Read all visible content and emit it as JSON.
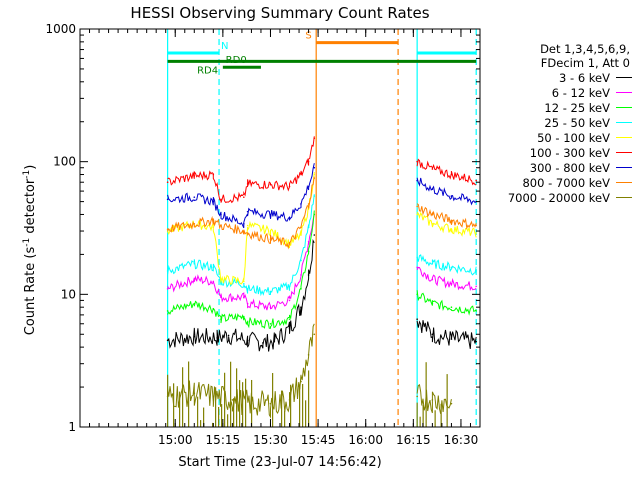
{
  "chart_data": {
    "type": "line",
    "title": "HESSI Observing Summary Count Rates",
    "xlabel": "Start Time (23-Jul-07 14:56:42)",
    "ylabel_main": "Count Rate (s",
    "ylabel_sup1": "-1",
    "ylabel_mid": " detector",
    "ylabel_sup2": "-1",
    "ylabel_end": ")",
    "yscale": "log",
    "ylim": [
      1,
      1000
    ],
    "xlim_minutes": [
      14.5,
      16.6
    ],
    "xticks": [
      {
        "m": 15.0,
        "label": "15:00"
      },
      {
        "m": 15.25,
        "label": "15:15"
      },
      {
        "m": 15.5,
        "label": "15:30"
      },
      {
        "m": 15.75,
        "label": "15:45"
      },
      {
        "m": 16.0,
        "label": "16:00"
      },
      {
        "m": 16.25,
        "label": "16:15"
      },
      {
        "m": 16.5,
        "label": "16:30"
      }
    ],
    "yticks": [
      {
        "v": 1,
        "label": "1"
      },
      {
        "v": 10,
        "label": "10"
      },
      {
        "v": 100,
        "label": "100"
      },
      {
        "v": 1000,
        "label": "1000"
      }
    ],
    "grid": false,
    "legend_position": "right",
    "legend_header": [
      "Det 1,3,4,5,6,9,",
      "FDecim 1, Att 0"
    ],
    "data_gaps": [
      [
        15.74,
        16.27
      ]
    ],
    "series": [
      {
        "name": "3 - 6 keV",
        "color": "#000000",
        "values": [
          [
            14.96,
            4.5
          ],
          [
            15.1,
            4.8
          ],
          [
            15.22,
            4.7
          ],
          [
            15.28,
            4.9
          ],
          [
            15.38,
            4.5
          ],
          [
            15.46,
            4.3
          ],
          [
            15.52,
            4.4
          ],
          [
            15.6,
            5.5
          ],
          [
            15.66,
            8
          ],
          [
            15.7,
            14
          ],
          [
            15.73,
            28
          ],
          [
            16.27,
            6.5
          ],
          [
            16.35,
            5.0
          ],
          [
            16.45,
            4.6
          ],
          [
            16.58,
            4.4
          ]
        ]
      },
      {
        "name": "6 - 12 keV",
        "color": "#ff00ff",
        "values": [
          [
            14.96,
            11
          ],
          [
            15.1,
            13
          ],
          [
            15.2,
            12.5
          ],
          [
            15.24,
            9.5
          ],
          [
            15.36,
            9.5
          ],
          [
            15.38,
            8.5
          ],
          [
            15.5,
            8.0
          ],
          [
            15.6,
            9.0
          ],
          [
            15.66,
            14
          ],
          [
            15.7,
            25
          ],
          [
            15.73,
            40
          ],
          [
            16.27,
            16
          ],
          [
            16.35,
            13
          ],
          [
            16.45,
            12
          ],
          [
            16.58,
            11.5
          ]
        ]
      },
      {
        "name": "12 - 25 keV",
        "color": "#00ff00",
        "values": [
          [
            14.96,
            7.5
          ],
          [
            15.1,
            8.5
          ],
          [
            15.2,
            7.8
          ],
          [
            15.24,
            6.5
          ],
          [
            15.36,
            6.8
          ],
          [
            15.38,
            6.2
          ],
          [
            15.5,
            6.0
          ],
          [
            15.6,
            6.5
          ],
          [
            15.66,
            11
          ],
          [
            15.7,
            21
          ],
          [
            15.73,
            40
          ],
          [
            16.27,
            10
          ],
          [
            16.35,
            8.5
          ],
          [
            16.45,
            8.0
          ],
          [
            16.58,
            7.5
          ]
        ]
      },
      {
        "name": "25 - 50 keV",
        "color": "#00ffff",
        "values": [
          [
            14.96,
            15
          ],
          [
            15.1,
            17
          ],
          [
            15.2,
            16
          ],
          [
            15.24,
            12.5
          ],
          [
            15.36,
            12
          ],
          [
            15.38,
            11
          ],
          [
            15.5,
            10.5
          ],
          [
            15.6,
            11.5
          ],
          [
            15.66,
            18
          ],
          [
            15.7,
            32
          ],
          [
            15.73,
            55
          ],
          [
            16.27,
            19
          ],
          [
            16.35,
            17
          ],
          [
            16.45,
            16
          ],
          [
            16.58,
            15
          ]
        ]
      },
      {
        "name": "50 - 100 keV",
        "color": "#ffff00",
        "values": [
          [
            14.96,
            30
          ],
          [
            15.1,
            34
          ],
          [
            15.2,
            32
          ],
          [
            15.24,
            13
          ],
          [
            15.36,
            12.5
          ],
          [
            15.38,
            33
          ],
          [
            15.5,
            30
          ],
          [
            15.6,
            24
          ],
          [
            15.66,
            28
          ],
          [
            15.7,
            45
          ],
          [
            15.73,
            80
          ],
          [
            16.27,
            40
          ],
          [
            16.35,
            34
          ],
          [
            16.45,
            31
          ],
          [
            16.58,
            29
          ]
        ]
      },
      {
        "name": "100 - 300 keV",
        "color": "#ff0000",
        "values": [
          [
            14.96,
            70
          ],
          [
            15.1,
            78
          ],
          [
            15.2,
            80
          ],
          [
            15.24,
            52
          ],
          [
            15.36,
            54
          ],
          [
            15.38,
            68
          ],
          [
            15.5,
            67
          ],
          [
            15.6,
            65
          ],
          [
            15.66,
            80
          ],
          [
            15.7,
            100
          ],
          [
            15.73,
            150
          ],
          [
            16.27,
            100
          ],
          [
            16.35,
            88
          ],
          [
            16.45,
            80
          ],
          [
            16.58,
            72
          ]
        ]
      },
      {
        "name": "300 - 800 keV",
        "color": "#0000cc",
        "values": [
          [
            14.96,
            52
          ],
          [
            15.1,
            54
          ],
          [
            15.2,
            50
          ],
          [
            15.24,
            40
          ],
          [
            15.36,
            34
          ],
          [
            15.38,
            42
          ],
          [
            15.5,
            40
          ],
          [
            15.6,
            38
          ],
          [
            15.66,
            48
          ],
          [
            15.7,
            65
          ],
          [
            15.73,
            90
          ],
          [
            16.27,
            72
          ],
          [
            16.35,
            62
          ],
          [
            16.45,
            55
          ],
          [
            16.58,
            50
          ]
        ]
      },
      {
        "name": "800 - 7000 keV",
        "color": "#ff8000",
        "values": [
          [
            14.96,
            31
          ],
          [
            15.1,
            34
          ],
          [
            15.2,
            36
          ],
          [
            15.24,
            33
          ],
          [
            15.36,
            30
          ],
          [
            15.38,
            29
          ],
          [
            15.5,
            26
          ],
          [
            15.6,
            24
          ],
          [
            15.66,
            32
          ],
          [
            15.7,
            48
          ],
          [
            15.73,
            75
          ],
          [
            16.27,
            46
          ],
          [
            16.35,
            40
          ],
          [
            16.45,
            36
          ],
          [
            16.58,
            33
          ]
        ]
      },
      {
        "name": "7000 - 20000 keV",
        "color": "#808000",
        "values": [
          [
            14.96,
            1.7
          ],
          [
            15.1,
            1.8
          ],
          [
            15.2,
            1.7
          ],
          [
            15.3,
            1.6
          ],
          [
            15.4,
            1.5
          ],
          [
            15.5,
            1.5
          ],
          [
            15.6,
            1.6
          ],
          [
            15.66,
            2.2
          ],
          [
            15.7,
            3.5
          ],
          [
            15.73,
            5
          ],
          [
            16.27,
            1.7
          ],
          [
            16.35,
            1.6
          ],
          [
            16.45,
            1.5
          ]
        ]
      }
    ],
    "vertical_lines": [
      {
        "x": 14.96,
        "color": "#00ffff",
        "style": "solid"
      },
      {
        "x": 15.23,
        "color": "#00ffff",
        "style": "dashed"
      },
      {
        "x": 16.27,
        "color": "#00ffff",
        "style": "solid"
      },
      {
        "x": 16.58,
        "color": "#00ffff",
        "style": "dashed"
      },
      {
        "x": 15.74,
        "color": "#ff8000",
        "style": "solid"
      },
      {
        "x": 16.17,
        "color": "#ff8000",
        "style": "dashed"
      }
    ],
    "flag_bars": [
      {
        "label": "N",
        "color": "#00ffff",
        "segments": [
          [
            14.96,
            15.23
          ],
          [
            16.27,
            16.58
          ]
        ],
        "y": 660,
        "label_x": 15.26
      },
      {
        "label": "S",
        "color": "#ff8000",
        "segments": [
          [
            15.74,
            16.17
          ]
        ],
        "y": 790,
        "label_x": 15.7
      },
      {
        "label": "RD0",
        "color": "#008000",
        "segments": [
          [
            15.25,
            15.45
          ]
        ],
        "y": 515,
        "label_x": 15.32
      },
      {
        "label": "RD4",
        "color": "#008000",
        "segments": [
          [
            14.96,
            16.58
          ]
        ],
        "y": 570,
        "label_x": 15.17
      }
    ]
  }
}
